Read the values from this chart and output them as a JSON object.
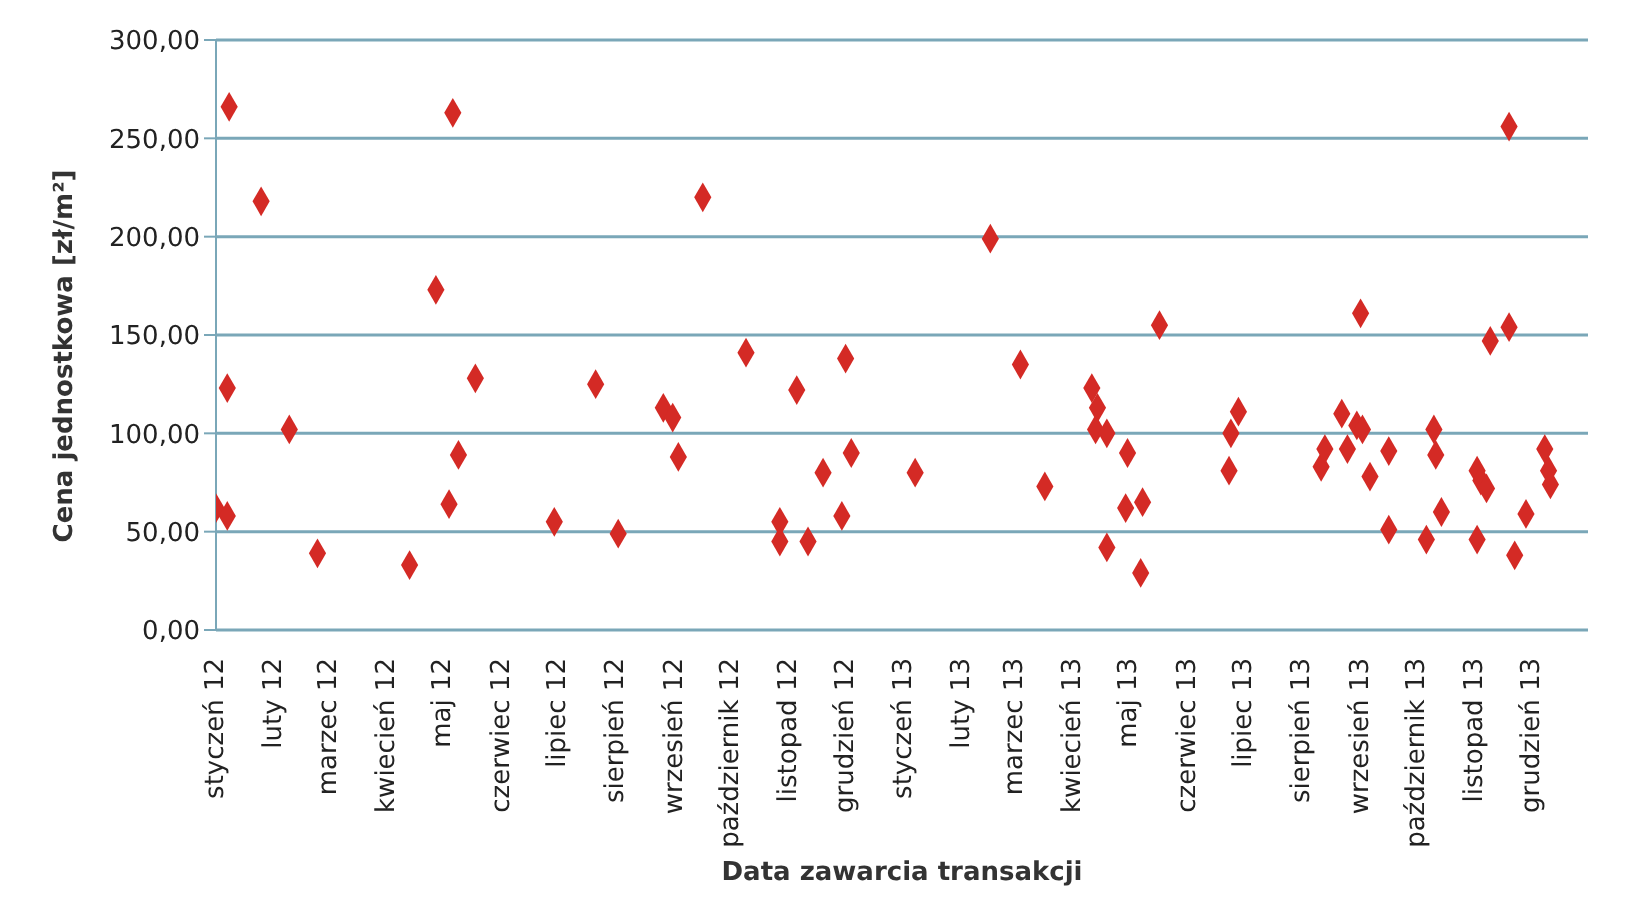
{
  "chart_data": {
    "type": "scatter",
    "xlabel": "Data zawarcia transakcji",
    "ylabel": "Cena jednostkowa [zł/m²]",
    "xlim": [
      "2012-01-01",
      "2013-12-31"
    ],
    "xticks": [
      {
        "value": "2012-01-01",
        "label": "styczeń 12"
      },
      {
        "value": "2012-02-01",
        "label": "luty 12"
      },
      {
        "value": "2012-03-01",
        "label": "marzec 12"
      },
      {
        "value": "2012-04-01",
        "label": "kwiecień 12"
      },
      {
        "value": "2012-05-01",
        "label": "maj 12"
      },
      {
        "value": "2012-06-01",
        "label": "czerwiec 12"
      },
      {
        "value": "2012-07-01",
        "label": "lipiec 12"
      },
      {
        "value": "2012-08-01",
        "label": "sierpień 12"
      },
      {
        "value": "2012-09-01",
        "label": "wrzesień 12"
      },
      {
        "value": "2012-10-01",
        "label": "październik 12"
      },
      {
        "value": "2012-11-01",
        "label": "listopad 12"
      },
      {
        "value": "2012-12-01",
        "label": "grudzień 12"
      },
      {
        "value": "2013-01-01",
        "label": "styczeń 13"
      },
      {
        "value": "2013-02-01",
        "label": "luty 13"
      },
      {
        "value": "2013-03-01",
        "label": "marzec 13"
      },
      {
        "value": "2013-04-01",
        "label": "kwiecień 13"
      },
      {
        "value": "2013-05-01",
        "label": "maj 13"
      },
      {
        "value": "2013-06-01",
        "label": "czerwiec 13"
      },
      {
        "value": "2013-07-01",
        "label": "lipiec 13"
      },
      {
        "value": "2013-08-01",
        "label": "sierpień 13"
      },
      {
        "value": "2013-09-01",
        "label": "wrzesień 13"
      },
      {
        "value": "2013-10-01",
        "label": "październik 13"
      },
      {
        "value": "2013-11-01",
        "label": "listopad 13"
      },
      {
        "value": "2013-12-01",
        "label": "grudzień 13"
      }
    ],
    "ylim": [
      0,
      300
    ],
    "yticks": [
      {
        "value": 0,
        "label": "0,00"
      },
      {
        "value": 50,
        "label": "50,00"
      },
      {
        "value": 100,
        "label": "100,00"
      },
      {
        "value": 150,
        "label": "150,00"
      },
      {
        "value": 200,
        "label": "200,00"
      },
      {
        "value": 250,
        "label": "250,00"
      },
      {
        "value": 300,
        "label": "300,00"
      }
    ],
    "grid": "y",
    "marker": "diamond",
    "legend": false,
    "series": [
      {
        "color": "#d42a25",
        "x": [
          "2012-01-08",
          "2012-01-25",
          "2012-04-27",
          "2012-05-06",
          "2012-01-07",
          "2012-05-18",
          "2012-07-21",
          "2012-02-09",
          "2012-05-09",
          "2012-01-01",
          "2012-01-07",
          "2012-05-04",
          "2012-06-29",
          "2012-02-24",
          "2012-04-13",
          "2012-08-02",
          "2012-09-16",
          "2013-02-16",
          "2012-10-09",
          "2012-11-05",
          "2012-12-01",
          "2013-03-04",
          "2012-08-26",
          "2012-08-31",
          "2012-09-03",
          "2012-12-04",
          "2012-11-19",
          "2013-01-07",
          "2013-03-17",
          "2012-10-27",
          "2012-10-27",
          "2012-11-11",
          "2012-11-29",
          "2013-11-19",
          "2013-05-17",
          "2013-09-01",
          "2013-11-09",
          "2013-11-19",
          "2013-04-11",
          "2013-04-14",
          "2013-04-13",
          "2013-04-19",
          "2013-04-30",
          "2013-04-19",
          "2013-04-29",
          "2013-05-08",
          "2013-05-07",
          "2013-06-28",
          "2013-06-24",
          "2013-06-23",
          "2013-08-11",
          "2013-08-13",
          "2013-08-22",
          "2013-08-25",
          "2013-08-30",
          "2013-09-02",
          "2013-09-06",
          "2013-09-16",
          "2013-09-16",
          "2013-10-10",
          "2013-10-11",
          "2013-10-14",
          "2013-10-06",
          "2013-11-02",
          "2013-11-04",
          "2013-11-07",
          "2013-11-02",
          "2013-11-28",
          "2013-11-22",
          "2013-12-08",
          "2013-12-10",
          "2013-12-11"
        ],
        "values": [
          266,
          218,
          173,
          263,
          123,
          128,
          125,
          102,
          89,
          62,
          58,
          64,
          55,
          39,
          33,
          49,
          220,
          199,
          141,
          122,
          138,
          135,
          113,
          108,
          88,
          90,
          80,
          80,
          73,
          55,
          45,
          45,
          58,
          256,
          155,
          161,
          147,
          154,
          123,
          113,
          102,
          100,
          90,
          42,
          62,
          65,
          29,
          111,
          100,
          81,
          83,
          92,
          110,
          92,
          104,
          102,
          78,
          91,
          51,
          102,
          89,
          60,
          46,
          81,
          76,
          72,
          46,
          59,
          38,
          92,
          81,
          74
        ]
      }
    ]
  }
}
